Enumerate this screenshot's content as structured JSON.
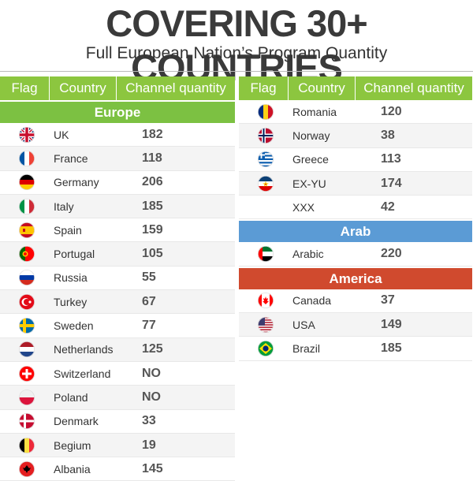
{
  "title": "COVERING 30+ COUNTRIES",
  "subtitle": "Full European Nation’s Program Quantity",
  "headers": {
    "flag": "Flag",
    "country": "Country",
    "qty": "Channel quantity"
  },
  "sections": {
    "europe": "Europe",
    "arab": "Arab",
    "america": "America"
  },
  "colors": {
    "green": "#8cc63f",
    "blue": "#5b9bd5",
    "red": "#d04a2e"
  },
  "europe_left": [
    {
      "country": "UK",
      "qty": "182",
      "flag": "uk-flag"
    },
    {
      "country": "France",
      "qty": "118",
      "flag": "france-flag"
    },
    {
      "country": "Germany",
      "qty": "206",
      "flag": "germany-flag"
    },
    {
      "country": "Italy",
      "qty": "185",
      "flag": "italy-flag"
    },
    {
      "country": "Spain",
      "qty": "159",
      "flag": "spain-flag"
    },
    {
      "country": "Portugal",
      "qty": "105",
      "flag": "portugal-flag"
    },
    {
      "country": "Russia",
      "qty": "55",
      "flag": "russia-flag"
    },
    {
      "country": "Turkey",
      "qty": "67",
      "flag": "turkey-flag"
    },
    {
      "country": "Sweden",
      "qty": "77",
      "flag": "sweden-flag"
    },
    {
      "country": "Netherlands",
      "qty": "125",
      "flag": "netherlands-flag"
    },
    {
      "country": "Switzerland",
      "qty": "NO",
      "flag": "switzerland-flag"
    },
    {
      "country": "Poland",
      "qty": "NO",
      "flag": "poland-flag"
    },
    {
      "country": "Denmark",
      "qty": "33",
      "flag": "denmark-flag"
    },
    {
      "country": "Begium",
      "qty": "19",
      "flag": "belgium-flag"
    },
    {
      "country": "Albania",
      "qty": "145",
      "flag": "albania-flag"
    }
  ],
  "europe_right": [
    {
      "country": "Romania",
      "qty": "120",
      "flag": "romania-flag"
    },
    {
      "country": "Norway",
      "qty": "38",
      "flag": "norway-flag"
    },
    {
      "country": "Greece",
      "qty": "113",
      "flag": "greece-flag"
    },
    {
      "country": "EX-YU",
      "qty": "174",
      "flag": "exyu-flag"
    },
    {
      "country": "XXX",
      "qty": "42",
      "flag": ""
    }
  ],
  "arab": [
    {
      "country": "Arabic",
      "qty": "220",
      "flag": "uae-flag"
    }
  ],
  "america": [
    {
      "country": "Canada",
      "qty": "37",
      "flag": "canada-flag"
    },
    {
      "country": "USA",
      "qty": "149",
      "flag": "usa-flag"
    },
    {
      "country": "Brazil",
      "qty": "185",
      "flag": "brazil-flag"
    }
  ]
}
